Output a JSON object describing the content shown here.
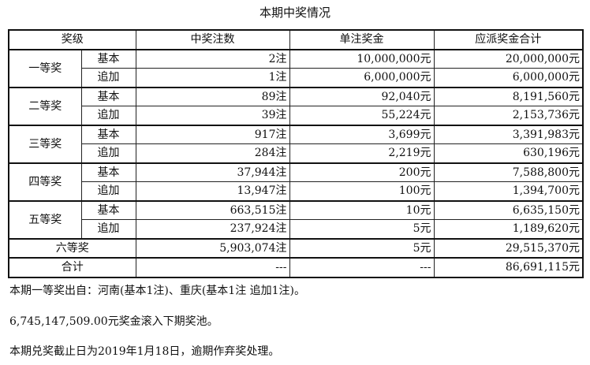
{
  "title": "本期中奖情况",
  "headers": [
    "奖级",
    "中奖注数",
    "单注奖金",
    "应派奖金合计"
  ],
  "groups": [
    {
      "name": "一等奖",
      "rows": [
        {
          "type": "基本",
          "count": "2注",
          "prize": "10,000,000元",
          "total": "20,000,000元"
        },
        {
          "type": "追加",
          "count": "1注",
          "prize": "6,000,000元",
          "total": "6,000,000元"
        }
      ]
    },
    {
      "name": "二等奖",
      "rows": [
        {
          "type": "基本",
          "count": "89注",
          "prize": "92,040元",
          "total": "8,191,560元"
        },
        {
          "type": "追加",
          "count": "39注",
          "prize": "55,224元",
          "total": "2,153,736元"
        }
      ]
    },
    {
      "name": "三等奖",
      "rows": [
        {
          "type": "基本",
          "count": "917注",
          "prize": "3,699元",
          "total": "3,391,983元"
        },
        {
          "type": "追加",
          "count": "284注",
          "prize": "2,219元",
          "total": "630,196元"
        }
      ]
    },
    {
      "name": "四等奖",
      "rows": [
        {
          "type": "基本",
          "count": "37,944注",
          "prize": "200元",
          "total": "7,588,800元"
        },
        {
          "type": "追加",
          "count": "13,947注",
          "prize": "100元",
          "total": "1,394,700元"
        }
      ]
    },
    {
      "name": "五等奖",
      "rows": [
        {
          "type": "基本",
          "count": "663,515注",
          "prize": "10元",
          "total": "6,635,150元"
        },
        {
          "type": "追加",
          "count": "237,924注",
          "prize": "5元",
          "total": "1,189,620元"
        }
      ]
    }
  ],
  "sixth": {
    "name": "六等奖",
    "count": "5,903,074注",
    "prize": "5元",
    "total": "29,515,370元"
  },
  "sum": {
    "name": "合计",
    "count": "---",
    "prize": "---",
    "total": "86,691,115元"
  },
  "notes": [
    "本期一等奖出自：河南(基本1注)、重庆(基本1注 追加1注)。",
    "6,745,147,509.00元奖金滚入下期奖池。",
    "本期兑奖截止日为2019年1月18日，逾期作弃奖处理。"
  ]
}
